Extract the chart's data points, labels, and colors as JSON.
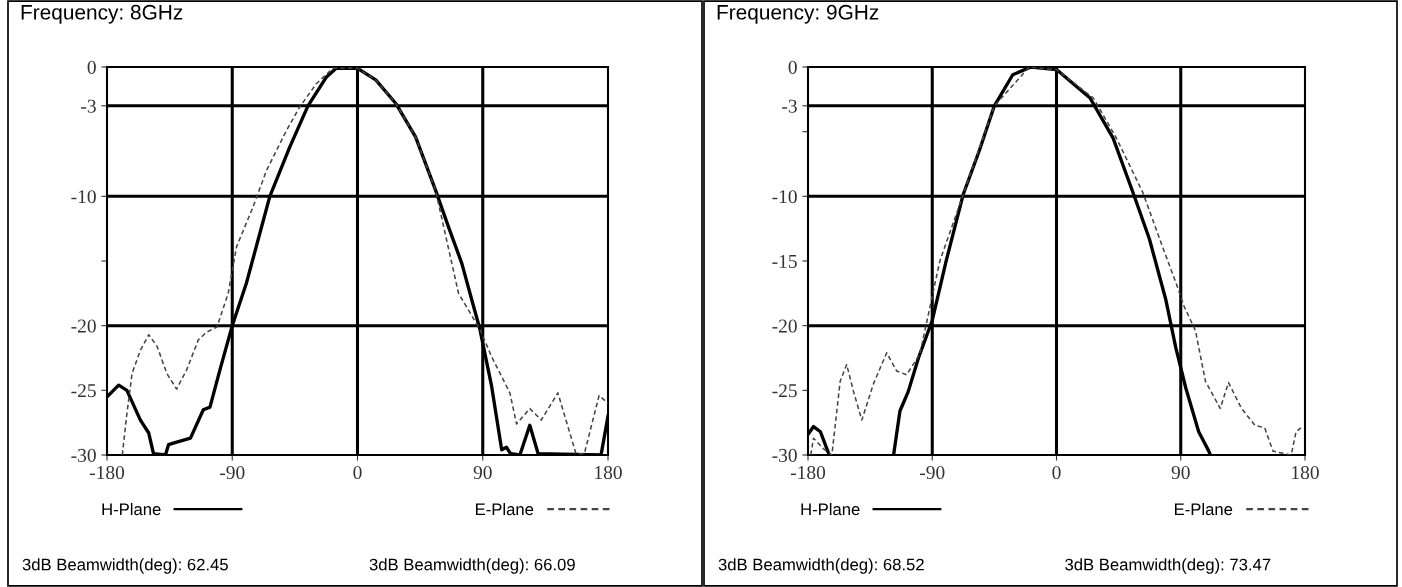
{
  "chart_data": [
    {
      "type": "line",
      "title": "Frequency: 8GHz",
      "xlim": [
        -180,
        180
      ],
      "xticks": [
        -180,
        -90,
        0,
        90,
        180
      ],
      "ylim": [
        -30,
        0
      ],
      "yticks": [
        0,
        -3,
        -10,
        {
          "value": -15,
          "label": null
        },
        -20,
        -25,
        -30
      ],
      "grid": false,
      "legend": "bottom",
      "ref_lines": [
        {
          "axis": "y",
          "value": -3,
          "color": "#000000"
        },
        {
          "axis": "y",
          "value": -10,
          "color": "#000000"
        },
        {
          "axis": "y",
          "value": -20,
          "color": "#000000"
        },
        {
          "axis": "x",
          "value": -90,
          "color": "#000000"
        },
        {
          "axis": "x",
          "value": 0,
          "color": "#000000"
        },
        {
          "axis": "x",
          "value": 90,
          "color": "#000000"
        }
      ],
      "annotations": [
        "3dB Beamwidth(deg): 62.45",
        "3dB Beamwidth(deg): 66.09"
      ],
      "series": [
        {
          "name": "H-Plane",
          "color": "#000000",
          "line_style": "solid",
          "x": [
            -180,
            -171.6,
            -165.7,
            -156,
            -150,
            -146.6,
            -138,
            -135.8,
            -129.9,
            -120,
            -110.8,
            -106,
            -98.8,
            -90,
            -79.8,
            -63,
            -48.7,
            -35.6,
            -22.5,
            -15.3,
            0,
            13.1,
            27.4,
            41.7,
            56,
            65.5,
            75,
            82.1,
            88,
            96.4,
            103.6,
            107,
            110,
            116.7,
            123.8,
            129.8,
            175,
            180
          ],
          "values": [
            -25.5,
            -24.6,
            -25,
            -27.3,
            -28.3,
            -29.9,
            -30,
            -29.2,
            -29,
            -28.7,
            -26.5,
            -26.3,
            -23.4,
            -20,
            -16.7,
            -10,
            -6.2,
            -3,
            -0.8,
            -0.1,
            -0.1,
            -1,
            -2.8,
            -5.4,
            -9.5,
            -12.4,
            -15.2,
            -18,
            -20.3,
            -24.7,
            -29.6,
            -29.4,
            -29.9,
            -30,
            -27.7,
            -29.9,
            -30,
            -27
          ]
        },
        {
          "name": "E-Plane",
          "color": "#444444",
          "line_style": "dashed",
          "x": [
            -169,
            -165.7,
            -162,
            -156,
            -150,
            -144,
            -137,
            -130,
            -122.7,
            -114.4,
            -108.4,
            -101,
            -92.9,
            -86.9,
            -75,
            -65.4,
            -51,
            -41.6,
            -29.6,
            -17.7,
            0,
            13.1,
            27.4,
            41.7,
            56,
            72.6,
            88,
            96.4,
            109.5,
            114.3,
            123.8,
            132,
            144,
            157,
            163,
            173.6,
            180
          ],
          "values": [
            -30,
            -26.8,
            -23.7,
            -21.9,
            -20.7,
            -21.6,
            -23.7,
            -24.9,
            -23.4,
            -21.1,
            -20.5,
            -20.1,
            -17.5,
            -13.9,
            -10.8,
            -8,
            -4.9,
            -3.1,
            -1.3,
            -0.1,
            -0.1,
            -1,
            -2.8,
            -5.4,
            -9.5,
            -17.5,
            -20.3,
            -22.4,
            -25.2,
            -27.6,
            -26.4,
            -27.3,
            -25.2,
            -29.9,
            -29.9,
            -25.4,
            -26
          ]
        }
      ]
    },
    {
      "type": "line",
      "title": "Frequency: 9GHz",
      "xlim": [
        -180,
        180
      ],
      "xticks": [
        -180,
        -90,
        0,
        90,
        180
      ],
      "ylim": [
        -30,
        0
      ],
      "yticks": [
        0,
        -3,
        {
          "value": -5,
          "label": null
        },
        -10,
        -15,
        -20,
        -25,
        -30
      ],
      "grid": false,
      "legend": "bottom",
      "ref_lines": [
        {
          "axis": "y",
          "value": -3,
          "color": "#000000"
        },
        {
          "axis": "y",
          "value": -10,
          "color": "#000000"
        },
        {
          "axis": "y",
          "value": -20,
          "color": "#000000"
        },
        {
          "axis": "x",
          "value": -90,
          "color": "#000000"
        },
        {
          "axis": "x",
          "value": 0,
          "color": "#000000"
        },
        {
          "axis": "x",
          "value": 90,
          "color": "#000000"
        }
      ],
      "annotations": [
        "3dB Beamwidth(deg): 68.52",
        "3dB Beamwidth(deg): 73.47"
      ],
      "series": [
        {
          "name": "H-Plane",
          "color": "#000000",
          "line_style": "solid",
          "x": [
            -180,
            -176,
            -171,
            -165,
            null,
            -118,
            -113.4,
            -107.4,
            -100,
            -90,
            -79.7,
            -67.7,
            -55.7,
            -45,
            -31.7,
            -18.6,
            0,
            24.3,
            41,
            55.4,
            67.3,
            79.2,
            86.4,
            93.6,
            103,
            110.3,
            111.5
          ],
          "values": [
            -28.4,
            -27.8,
            -28.2,
            -29.9,
            null,
            -30,
            -26.6,
            -25.1,
            -22.5,
            -19.6,
            -14.9,
            -9.9,
            -6.4,
            -3,
            -0.6,
            0,
            -0.2,
            -2.4,
            -5.5,
            -9.7,
            -13.3,
            -18,
            -21.7,
            -24.8,
            -28.2,
            -29.7,
            -30
          ]
        },
        {
          "name": "E-Plane",
          "color": "#444444",
          "line_style": "dashed",
          "x": [
            -178,
            -176,
            -169,
            -162.7,
            -156.7,
            -152,
            -147,
            -141,
            -132.6,
            -123,
            -115.8,
            -108.6,
            -99,
            -84.5,
            -67.7,
            -45,
            -19.7,
            0,
            26.7,
            43.4,
            62.5,
            76.8,
            87.6,
            92.4,
            100.7,
            107.9,
            118.6,
            124.6,
            134,
            143.7,
            150.8,
            156.8,
            170,
            173.5,
            177
          ],
          "values": [
            -30,
            -28.7,
            -29.5,
            -30,
            -24.3,
            -23,
            -25.1,
            -27.3,
            -24.5,
            -22.1,
            -23.5,
            -23.8,
            -22.2,
            -15,
            -9.9,
            -3,
            0,
            -0.2,
            -2.4,
            -5.5,
            -9.7,
            -13.9,
            -17,
            -18.5,
            -20.4,
            -24.3,
            -26.4,
            -24.4,
            -26.4,
            -27.7,
            -27.9,
            -29.7,
            -30,
            -28.2,
            -27.9
          ]
        }
      ]
    }
  ]
}
